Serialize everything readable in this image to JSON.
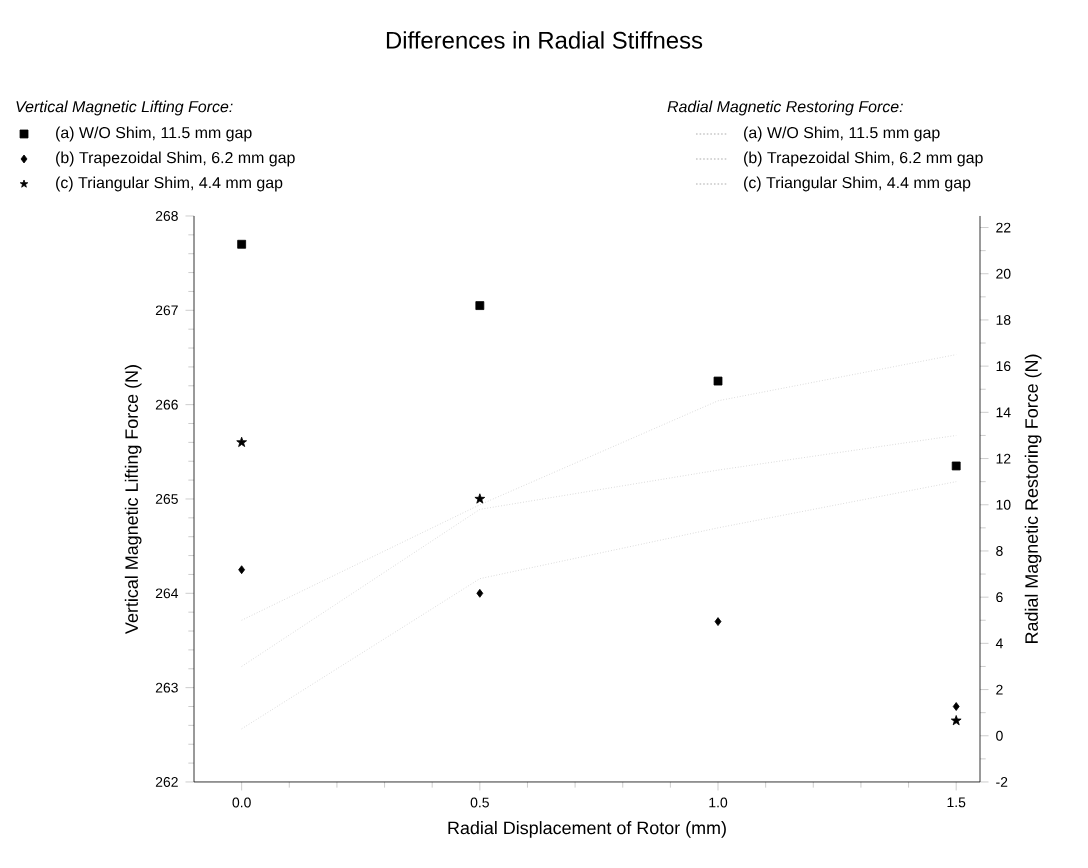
{
  "chart_data": {
    "type": "scatter",
    "title": "Differences in Radial Stiffness",
    "xlabel": "Radial Displacement of Rotor (mm)",
    "ylabel": "Vertical Magnetic Lifting Force (N)",
    "y2label": "Radial Magnetic Restoring Force (N)",
    "legend_title": "Vertical Magnetic Lifting Force:",
    "annotations": [
      "Radial Magnetic Restoring Force:"
    ],
    "legend": "top",
    "x": [
      0,
      0.5,
      1,
      1.5
    ],
    "xlim": [
      -0.1,
      1.55
    ],
    "xticks": [
      {
        "value": 0,
        "label": "0.0"
      },
      0.5,
      {
        "value": 1,
        "label": "1.0"
      },
      1.5
    ],
    "ylim": [
      262,
      268
    ],
    "yticks": [
      262,
      263,
      264,
      265,
      266,
      267,
      268
    ],
    "y2lim": [
      -2,
      22.5
    ],
    "y2ticks": [
      -2,
      0,
      2,
      4,
      6,
      8,
      10,
      12,
      14,
      16,
      18,
      20,
      22
    ],
    "series": [
      {
        "name": "(a) W/O Shim, 11.5 mm gap",
        "color": "#000000",
        "marker": "square",
        "values": [
          267.7,
          267.05,
          266.25,
          265.35
        ]
      },
      {
        "name": "(b) Trapezoidal Shim, 6.2 mm gap",
        "color": "#000000",
        "marker": "diamond",
        "values": [
          264.25,
          264.0,
          263.7,
          262.8
        ]
      },
      {
        "name": "(c) Triangular Shim, 4.4 mm gap",
        "color": "#000000",
        "marker": "star",
        "values": [
          265.6,
          265.0,
          null,
          262.65
        ]
      },
      {
        "name": "(a) W/O Shim, 11.5 mm gap",
        "color": "#c8c8c8",
        "type": "line",
        "axis": "y2",
        "marker": "none",
        "line_style": "dotted",
        "values": [
          5,
          10,
          14.5,
          16.5
        ]
      },
      {
        "name": "(b) Trapezoidal Shim, 6.2 mm gap",
        "color": "#c8c8c8",
        "type": "line",
        "axis": "y2",
        "marker": "none",
        "line_style": "dotted",
        "values": [
          3,
          9.8,
          11.5,
          13
        ]
      },
      {
        "name": "(c) Triangular Shim, 4.4 mm gap",
        "color": "#c8c8c8",
        "type": "line",
        "axis": "y2",
        "marker": "none",
        "line_style": "dotted",
        "values": [
          0.3,
          6.8,
          9,
          11
        ]
      }
    ]
  }
}
